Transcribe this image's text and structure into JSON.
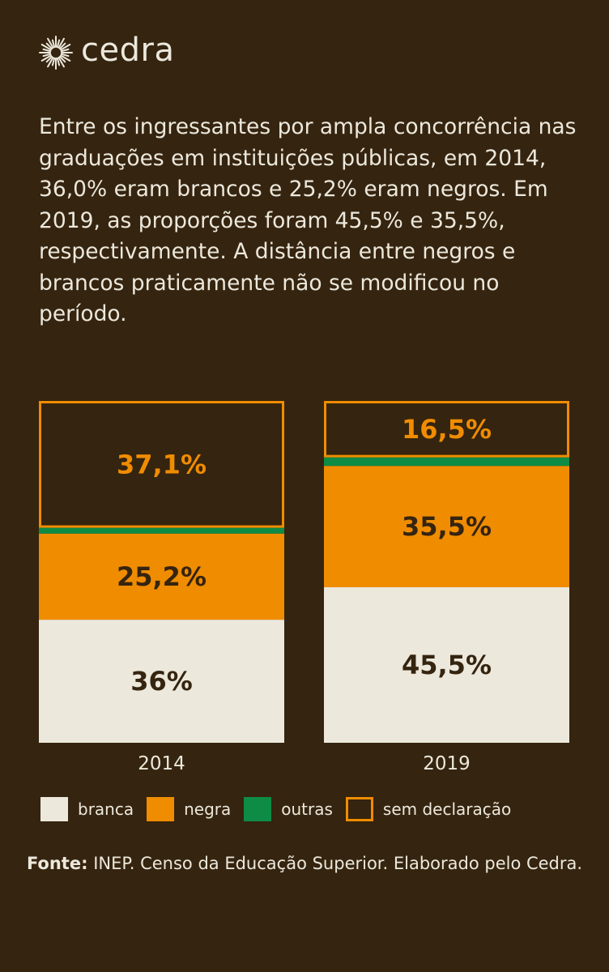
{
  "brand": {
    "name": "cedra",
    "logo_icon": "sun-burst-icon"
  },
  "intro_text": "Entre os ingressantes por ampla concorrência nas graduações em instituições públicas, em 2014, 36,0% eram brancos e 25,2% eram negros. Em 2019, as proporções foram 45,5% e 35,5%, respectivamente. A distância entre negros e brancos praticamente não se modificou no período.",
  "colors": {
    "background": "#35240f",
    "branca": "#ece8dc",
    "negra": "#f08c00",
    "outras": "#0e8c46",
    "sem_declaracao_border": "#f08c00",
    "dark_text": "#35240f",
    "orange_text": "#f08c00"
  },
  "chart_data": {
    "type": "bar",
    "stacked": true,
    "categories": [
      "2014",
      "2019"
    ],
    "series": [
      {
        "name": "branca",
        "values": [
          36.0,
          45.5
        ],
        "labels": [
          "36%",
          "45,5%"
        ]
      },
      {
        "name": "negra",
        "values": [
          25.2,
          35.5
        ],
        "labels": [
          "25,2%",
          "35,5%"
        ]
      },
      {
        "name": "outras",
        "values": [
          1.7,
          2.5
        ],
        "labels": [
          "",
          ""
        ]
      },
      {
        "name": "sem declaração",
        "values": [
          37.1,
          16.5
        ],
        "labels": [
          "37,1%",
          "16,5%"
        ]
      }
    ],
    "ylim": [
      0,
      100
    ],
    "legend_position": "bottom"
  },
  "legend": [
    {
      "key": "branca",
      "label": "branca"
    },
    {
      "key": "negra",
      "label": "negra"
    },
    {
      "key": "outras",
      "label": "outras"
    },
    {
      "key": "sem_declaracao",
      "label": "sem declaração"
    }
  ],
  "source": {
    "label": "Fonte:",
    "text": "INEP. Censo da Educação Superior. Elaborado pelo Cedra."
  }
}
